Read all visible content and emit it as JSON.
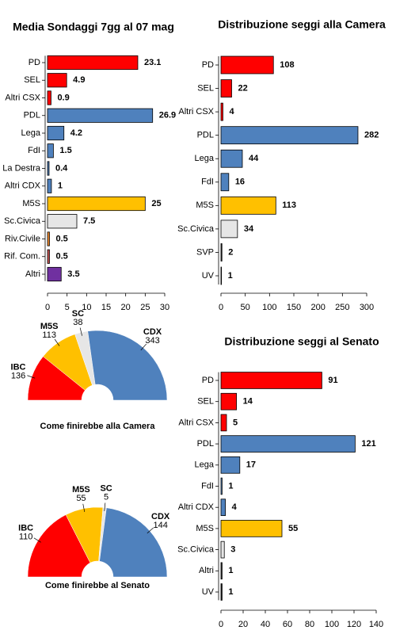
{
  "chart_data": [
    {
      "type": "bar",
      "orientation": "horizontal",
      "title": "Media Sondaggi 7gg al 07 mag",
      "categories": [
        "PD",
        "SEL",
        "Altri CSX",
        "PDL",
        "Lega",
        "FdI",
        "La Destra",
        "Altri CDX",
        "M5S",
        "Sc.Civica",
        "Riv.Civile",
        "Rif. Com.",
        "Altri"
      ],
      "values": [
        23.1,
        4.9,
        0.9,
        26.9,
        4.2,
        1.5,
        0.4,
        1,
        25,
        7.5,
        0.5,
        0.5,
        3.5
      ],
      "colors": [
        "#ff0000",
        "#ff0000",
        "#ff0000",
        "#4f81bd",
        "#4f81bd",
        "#4f81bd",
        "#4f81bd",
        "#4f81bd",
        "#ffc000",
        "#e6e6e6",
        "#e8842a",
        "#c0504d",
        "#7030a0"
      ],
      "xlim": [
        0,
        30
      ],
      "xticks": [
        0,
        5,
        10,
        15,
        20,
        25,
        30
      ]
    },
    {
      "type": "bar",
      "orientation": "horizontal",
      "title": "Distribuzione seggi alla Camera",
      "categories": [
        "PD",
        "SEL",
        "Altri CSX",
        "PDL",
        "Lega",
        "FdI",
        "M5S",
        "Sc.Civica",
        "SVP",
        "UV"
      ],
      "values": [
        108,
        22,
        4,
        282,
        44,
        16,
        113,
        34,
        2,
        1
      ],
      "colors": [
        "#ff0000",
        "#ff0000",
        "#ff0000",
        "#4f81bd",
        "#4f81bd",
        "#4f81bd",
        "#ffc000",
        "#e6e6e6",
        "#333333",
        "#222222"
      ],
      "xlim": [
        0,
        300
      ],
      "xticks": [
        0,
        50,
        100,
        150,
        200,
        250,
        300
      ]
    },
    {
      "type": "pie",
      "half_circle": true,
      "title": "Come finirebbe alla Camera",
      "categories": [
        "IBC",
        "M5S",
        "SC",
        "CDX"
      ],
      "values": [
        136,
        113,
        38,
        343
      ],
      "colors": [
        "#ff0000",
        "#ffc000",
        "#e6e6e6",
        "#4f81bd"
      ]
    },
    {
      "type": "bar",
      "orientation": "horizontal",
      "title": "Distribuzione seggi al Senato",
      "categories": [
        "PD",
        "SEL",
        "Altri CSX",
        "PDL",
        "Lega",
        "FdI",
        "Altri CDX",
        "M5S",
        "Sc.Civica",
        "Altri",
        "UV"
      ],
      "values": [
        91,
        14,
        5,
        121,
        17,
        1,
        4,
        55,
        3,
        1,
        1
      ],
      "colors": [
        "#ff0000",
        "#ff0000",
        "#ff0000",
        "#4f81bd",
        "#4f81bd",
        "#4f81bd",
        "#4f81bd",
        "#ffc000",
        "#e6e6e6",
        "#333333",
        "#222222"
      ],
      "xlim": [
        0,
        140
      ],
      "xticks": [
        0,
        20,
        40,
        60,
        80,
        100,
        120,
        140
      ]
    },
    {
      "type": "pie",
      "half_circle": true,
      "title": "Come finirebbe al Senato",
      "categories": [
        "IBC",
        "M5S",
        "SC",
        "CDX"
      ],
      "values": [
        110,
        55,
        5,
        144
      ],
      "colors": [
        "#ff0000",
        "#ffc000",
        "#e6e6e6",
        "#4f81bd"
      ]
    }
  ]
}
